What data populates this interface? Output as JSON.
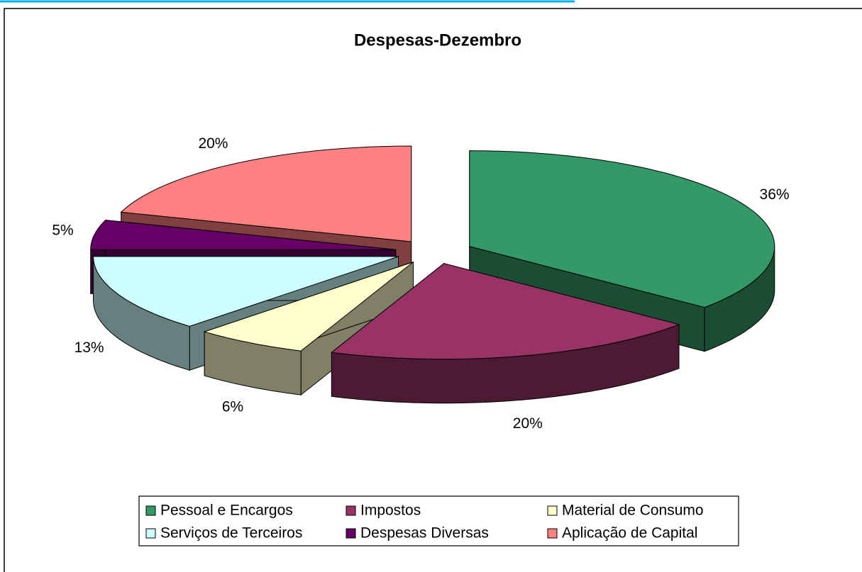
{
  "chart_data": {
    "type": "pie",
    "title": "Despesas-Dezembro",
    "categories": [
      "Pessoal e Encargos",
      "Impostos",
      "Material de Consumo",
      "Serviços de Terceiros",
      "Despesas Diversas",
      "Aplicação de Capital"
    ],
    "values": [
      36,
      20,
      6,
      13,
      5,
      20
    ],
    "value_labels": [
      "36%",
      "20%",
      "6%",
      "13%",
      "5%",
      "20%"
    ],
    "colors": [
      "#339966",
      "#993366",
      "#ffffcc",
      "#ccffff",
      "#660066",
      "#ff8080"
    ],
    "legend": "bottom"
  }
}
